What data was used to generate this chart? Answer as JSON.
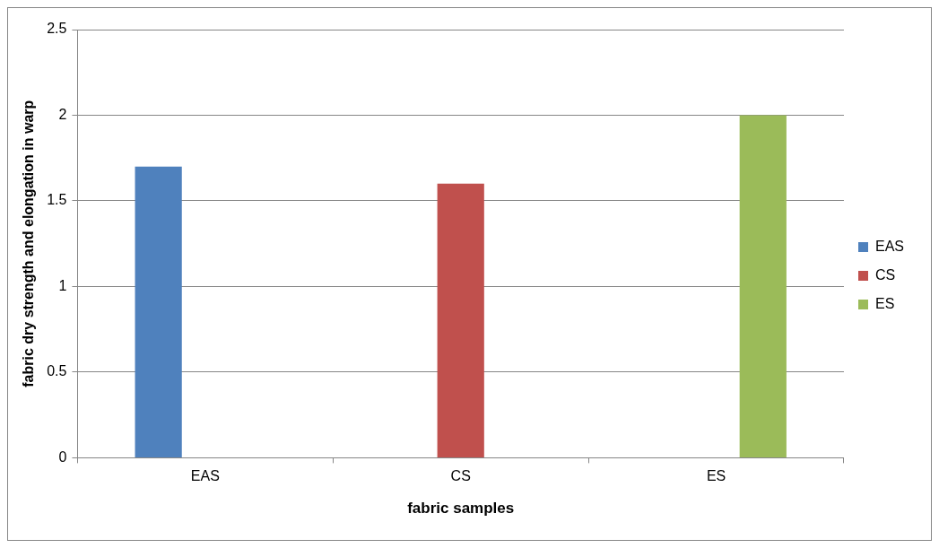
{
  "chart_data": {
    "type": "bar",
    "xlabel": "fabric samples",
    "ylabel": "fabric dry strength and elongation in warp",
    "categories": [
      "EAS",
      "CS",
      "ES"
    ],
    "series": [
      {
        "name": "EAS",
        "color": "#4f81bd",
        "values": [
          1.7,
          null,
          null
        ]
      },
      {
        "name": "CS",
        "color": "#c0504d",
        "values": [
          null,
          1.6,
          null
        ]
      },
      {
        "name": "ES",
        "color": "#9bbb59",
        "values": [
          null,
          null,
          2.0
        ]
      }
    ],
    "ylim": [
      0,
      2.5
    ],
    "yticks": [
      0,
      0.5,
      1,
      1.5,
      2,
      2.5
    ],
    "grid": "y",
    "legend": "right"
  }
}
